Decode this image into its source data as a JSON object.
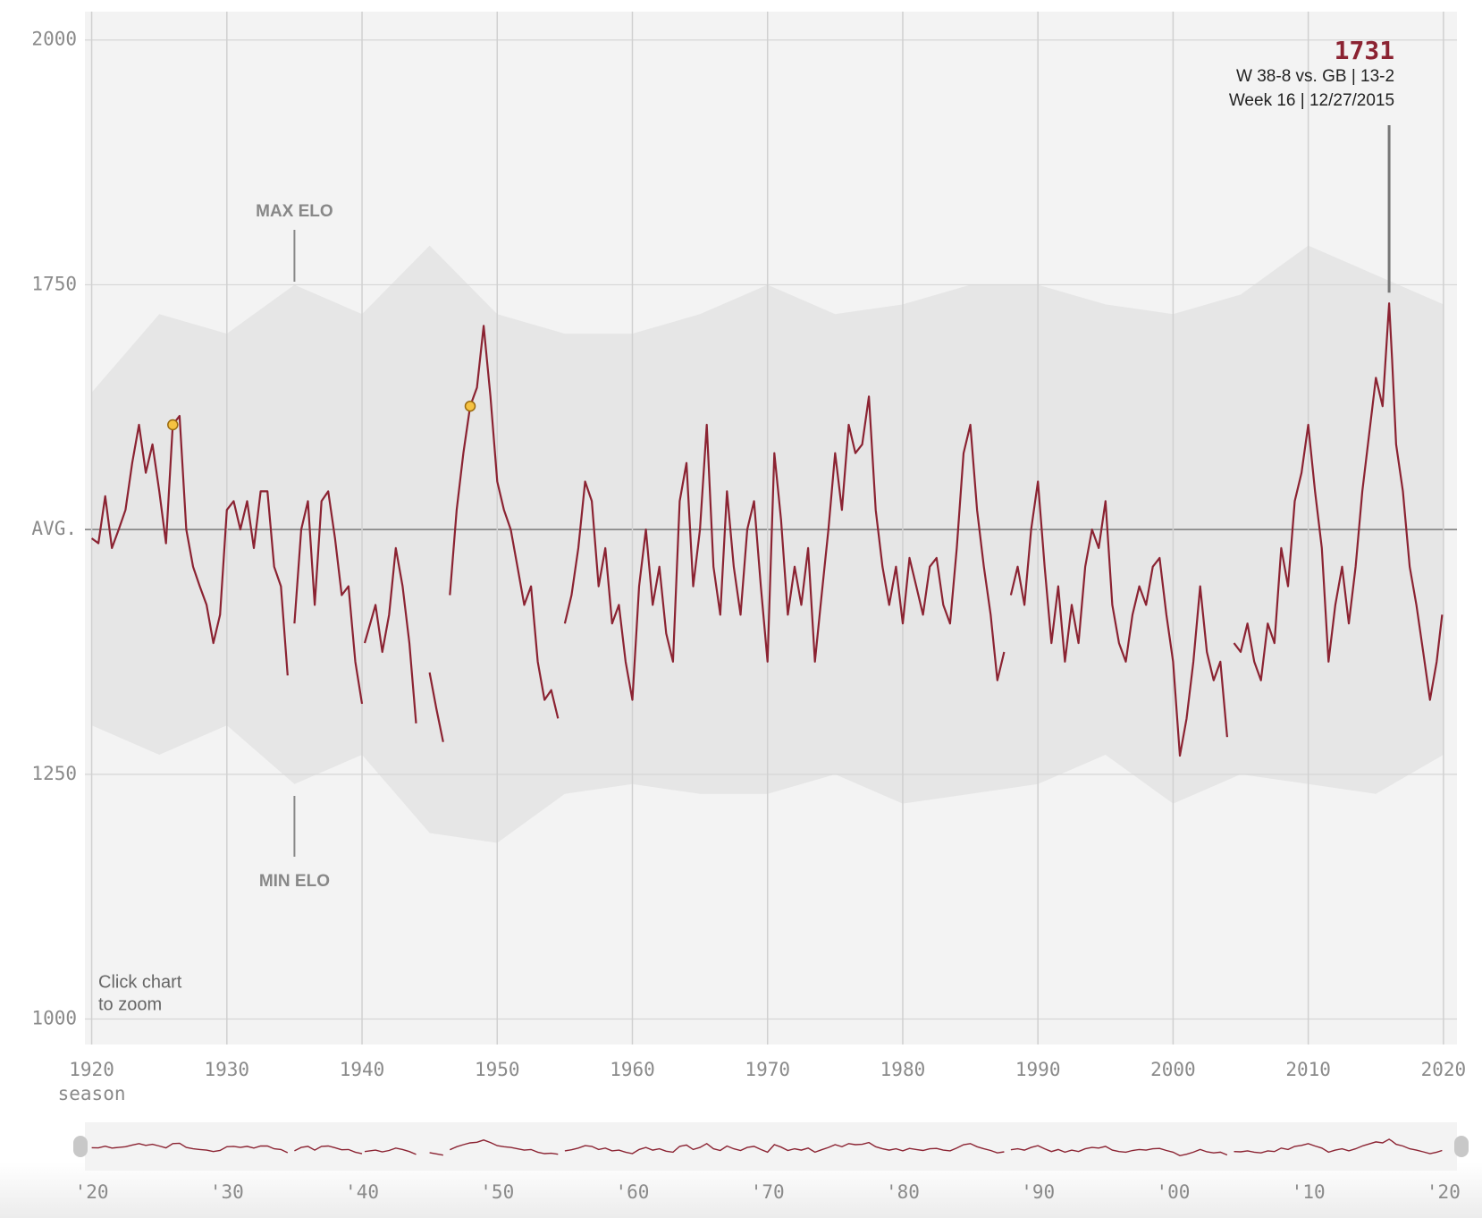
{
  "chart_data": {
    "type": "line",
    "x": [
      1920,
      1920.5,
      1921,
      1921.5,
      1922,
      1922.5,
      1923,
      1923.5,
      1924,
      1924.5,
      1925,
      1925.5,
      1926,
      1926.5,
      1927,
      1927.5,
      1928,
      1928.5,
      1929,
      1929.5,
      1930,
      1930.5,
      1931,
      1931.5,
      1932,
      1932.5,
      1933,
      1933.5,
      1934,
      1934.5,
      1934.75,
      1935,
      1935.5,
      1936,
      1936.5,
      1937,
      1937.5,
      1938,
      1938.5,
      1939,
      1939.5,
      1940,
      1940.1,
      1940.2,
      1941,
      1941.5,
      1942,
      1942.5,
      1943,
      1943.5,
      1944,
      1944.5,
      1945,
      1945.5,
      1946,
      1946.2,
      1946.5,
      1947,
      1947.5,
      1948,
      1948.5,
      1949,
      1949.5,
      1950,
      1950.5,
      1951,
      1951.5,
      1952,
      1952.5,
      1953,
      1953.5,
      1954,
      1954.5,
      1954.75,
      1955,
      1955.5,
      1956,
      1956.5,
      1957,
      1957.5,
      1958,
      1958.5,
      1959,
      1959.5,
      1960,
      1960.5,
      1961,
      1961.5,
      1962,
      1962.5,
      1963,
      1963.5,
      1964,
      1964.5,
      1965,
      1965.5,
      1966,
      1966.5,
      1967,
      1967.5,
      1968,
      1968.5,
      1969,
      1969.5,
      1970,
      1970.5,
      1971,
      1971.5,
      1972,
      1972.5,
      1973,
      1973.5,
      1974,
      1974.5,
      1975,
      1975.5,
      1976,
      1976.5,
      1977,
      1977.5,
      1978,
      1978.5,
      1979,
      1979.5,
      1980,
      1980.5,
      1981,
      1981.5,
      1982,
      1982.5,
      1983,
      1983.5,
      1984,
      1984.5,
      1985,
      1985.5,
      1986,
      1986.5,
      1987,
      1987.5,
      1987.75,
      1988,
      1988.5,
      1989,
      1989.5,
      1990,
      1990.5,
      1991,
      1991.5,
      1992,
      1992.5,
      1993,
      1993.5,
      1994,
      1994.5,
      1995,
      1995.5,
      1996,
      1996.5,
      1997,
      1997.5,
      1998,
      1998.5,
      1999,
      1999.5,
      2000,
      2000.5,
      2001,
      2001.5,
      2002,
      2002.5,
      2003,
      2003.5,
      2004,
      2004.25,
      2004.5,
      2005,
      2005.5,
      2006,
      2006.5,
      2007,
      2007.5,
      2008,
      2008.5,
      2009,
      2009.5,
      2010,
      2010.5,
      2011,
      2011.5,
      2012,
      2012.5,
      2013,
      2013.5,
      2014,
      2014.5,
      2015,
      2015.5,
      2015.98,
      2016.2,
      2016.5,
      2017,
      2017.5,
      2018,
      2018.5,
      2019,
      2019.5,
      2019.9
    ],
    "series": [
      {
        "color": "#8b2332",
        "values": [
          1491,
          1486,
          1534,
          1481,
          1500,
          1520,
          1568,
          1607,
          1558,
          1587,
          1539,
          1486,
          1607,
          1616,
          1500,
          1462,
          1442,
          1423,
          1384,
          1413,
          1520,
          1529,
          1500,
          1529,
          1481,
          1539,
          1539,
          1462,
          1442,
          1351,
          null,
          1404,
          1500,
          1529,
          1423,
          1529,
          1539,
          1491,
          1433,
          1442,
          1365,
          1322,
          null,
          1384,
          1423,
          1375,
          1413,
          1481,
          1442,
          1384,
          1302,
          null,
          1354,
          1317,
          1283,
          null,
          1433,
          1520,
          1578,
          1626,
          1645,
          1708,
          1636,
          1549,
          1520,
          1500,
          1462,
          1423,
          1442,
          1365,
          1326,
          1336,
          1307,
          null,
          1404,
          1433,
          1481,
          1549,
          1529,
          1442,
          1481,
          1404,
          1423,
          1365,
          1326,
          1442,
          1500,
          1423,
          1462,
          1394,
          1365,
          1529,
          1568,
          1442,
          1500,
          1607,
          1462,
          1413,
          1539,
          1462,
          1413,
          1500,
          1529,
          1442,
          1365,
          1578,
          1510,
          1413,
          1462,
          1423,
          1481,
          1365,
          1433,
          1500,
          1578,
          1520,
          1607,
          1578,
          1587,
          1636,
          1520,
          1462,
          1423,
          1462,
          1404,
          1471,
          1442,
          1413,
          1462,
          1471,
          1423,
          1404,
          1481,
          1578,
          1607,
          1520,
          1462,
          1413,
          1346,
          1375,
          null,
          1433,
          1462,
          1423,
          1500,
          1549,
          1462,
          1384,
          1442,
          1365,
          1423,
          1384,
          1462,
          1500,
          1481,
          1529,
          1423,
          1384,
          1365,
          1413,
          1442,
          1423,
          1462,
          1471,
          1413,
          1365,
          1269,
          1307,
          1365,
          1442,
          1375,
          1346,
          1365,
          1288,
          null,
          1384,
          1375,
          1404,
          1365,
          1346,
          1404,
          1384,
          1481,
          1442,
          1529,
          1558,
          1607,
          1539,
          1481,
          1365,
          1423,
          1462,
          1404,
          1462,
          1539,
          1597,
          1655,
          1626,
          1731,
          1674,
          1587,
          1539,
          1462,
          1423,
          1375,
          1326,
          1365,
          1413
        ]
      }
    ],
    "band": {
      "color": "#e6e6e6",
      "x": [
        1920,
        1925,
        1930,
        1935,
        1940,
        1945,
        1950,
        1955,
        1960,
        1965,
        1970,
        1975,
        1980,
        1985,
        1990,
        1995,
        2000,
        2005,
        2010,
        2015,
        2020
      ],
      "max": [
        1640,
        1720,
        1700,
        1750,
        1720,
        1790,
        1720,
        1700,
        1700,
        1720,
        1750,
        1720,
        1730,
        1750,
        1750,
        1730,
        1720,
        1740,
        1790,
        1760,
        1730
      ],
      "min": [
        1300,
        1270,
        1300,
        1240,
        1270,
        1190,
        1180,
        1230,
        1240,
        1230,
        1230,
        1250,
        1220,
        1230,
        1240,
        1270,
        1220,
        1250,
        1240,
        1230,
        1270
      ]
    },
    "markers": {
      "color": "#f5c242",
      "x": [
        1926,
        1948
      ],
      "values": [
        1607,
        1626
      ]
    },
    "xlim": [
      1919.5,
      2021
    ],
    "xticks": [
      1920,
      1930,
      1940,
      1950,
      1960,
      1970,
      1980,
      1990,
      2000,
      2010,
      2020
    ],
    "xlabel": "season",
    "ylim": [
      974,
      2029
    ],
    "yticks": [
      1000,
      1250,
      {
        "value": 1500,
        "label": "AVG."
      },
      1750,
      2000
    ],
    "grid": true,
    "peak": {
      "x": 2015.98,
      "value": 1731,
      "lines": [
        "W 38-8 vs. GB | 13-2",
        "Week 16 | 12/27/2015"
      ]
    },
    "max_label": "MAX ELO",
    "min_label": "MIN ELO",
    "note": [
      "Click chart",
      "to zoom"
    ],
    "navigator_xticks": [
      {
        "value": 1920,
        "label": "'20"
      },
      {
        "value": 1930,
        "label": "'30"
      },
      {
        "value": 1940,
        "label": "'40"
      },
      {
        "value": 1950,
        "label": "'50"
      },
      {
        "value": 1960,
        "label": "'60"
      },
      {
        "value": 1970,
        "label": "'70"
      },
      {
        "value": 1980,
        "label": "'80"
      },
      {
        "value": 1990,
        "label": "'90"
      },
      {
        "value": 2000,
        "label": "'00"
      },
      {
        "value": 2010,
        "label": "'10"
      },
      {
        "value": 2020,
        "label": "'20"
      }
    ]
  }
}
